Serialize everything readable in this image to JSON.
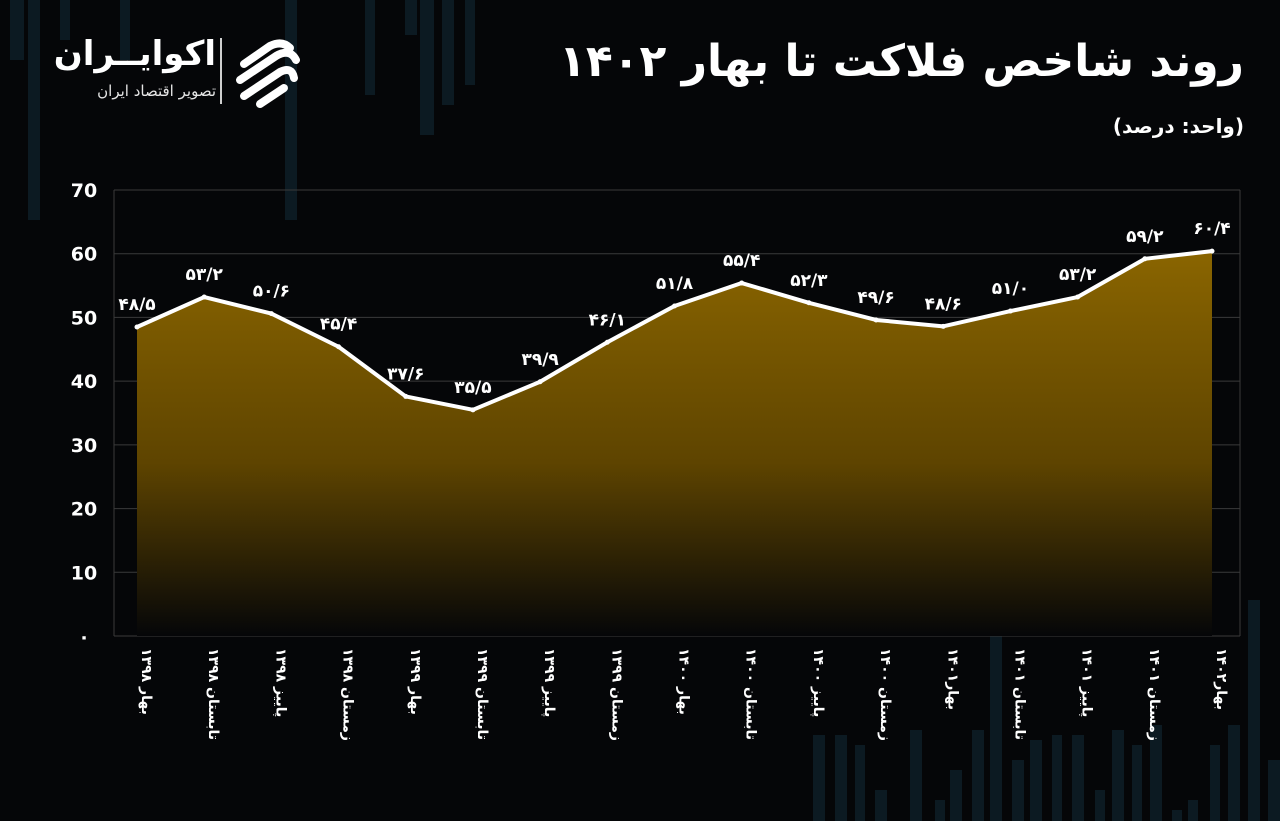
{
  "header": {
    "title": "روند شاخص فلاکت تا بهار ۱۴۰۲",
    "unit": "(واحد: درصد)"
  },
  "brand": {
    "name": "اکوایــران",
    "tagline": "تصویر اقتصاد ایران",
    "logo_icon": "eco-iran-logo-icon"
  },
  "colors": {
    "background": "#050608",
    "line": "#ffffff",
    "fill_top": "#8a6500",
    "fill_bottom": "#050608",
    "grid": "#3a3a3a",
    "bars": "#0c1a22"
  },
  "chart_data": {
    "type": "area",
    "title": "روند شاخص فلاکت تا بهار ۱۴۰۲",
    "ylabel": "(واحد: درصد)",
    "xlabel": "",
    "ylim": [
      0,
      70
    ],
    "yticks": [
      0,
      10,
      20,
      30,
      40,
      50,
      60,
      70
    ],
    "ytick_labels": [
      "۰",
      "10",
      "20",
      "30",
      "40",
      "50",
      "60",
      "70"
    ],
    "grid": true,
    "categories": [
      "بهار ۱۳۹۸",
      "تابستان ۱۳۹۸",
      "پاییز ۱۳۹۸",
      "زمستان ۱۳۹۸",
      "بهار ۱۳۹۹",
      "تابستان ۱۳۹۹",
      "پاییز ۱۳۹۹",
      "زمستان ۱۳۹۹",
      "بهار ۱۴۰۰",
      "تابستان ۱۴۰۰",
      "پاییز ۱۴۰۰",
      "زمستان ۱۴۰۰",
      "بهار۱۴۰۱",
      "تابستان ۱۴۰۱",
      "پاییز ۱۴۰۱",
      "زمستان ۱۴۰۱",
      "بهار۱۴۰۲"
    ],
    "values": [
      48.5,
      53.2,
      50.6,
      45.4,
      37.6,
      35.5,
      39.9,
      46.1,
      51.8,
      55.4,
      52.3,
      49.6,
      48.6,
      51.0,
      53.2,
      59.2,
      60.4
    ],
    "value_labels": [
      "۴۸/۵",
      "۵۳/۲",
      "۵۰/۶",
      "۴۵/۴",
      "۳۷/۶",
      "۳۵/۵",
      "۳۹/۹",
      "۴۶/۱",
      "۵۱/۸",
      "۵۵/۴",
      "۵۲/۳",
      "۴۹/۶",
      "۴۸/۶",
      "۵۱/۰",
      "۵۳/۲",
      "۵۹/۲",
      "۶۰/۴"
    ]
  }
}
